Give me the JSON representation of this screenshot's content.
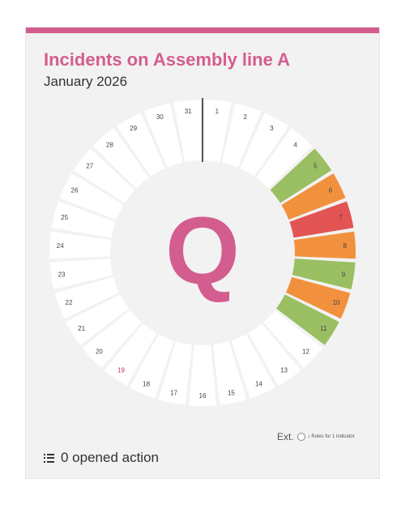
{
  "card": {
    "title": "Incidents on Assembly line A",
    "subtitle": "January 2026",
    "accent_color": "#d45d8f"
  },
  "calendar_ring": {
    "center_letter": "Q",
    "center_letter_color": "#d45d8f",
    "days_in_month": 31,
    "highlighted_day": 19,
    "highlight_color": "#c0336a",
    "days": [
      {
        "day": "1",
        "status": "empty"
      },
      {
        "day": "2",
        "status": "empty"
      },
      {
        "day": "3",
        "status": "empty"
      },
      {
        "day": "4",
        "status": "empty"
      },
      {
        "day": "5",
        "status": "green"
      },
      {
        "day": "6",
        "status": "orange"
      },
      {
        "day": "7",
        "status": "red"
      },
      {
        "day": "8",
        "status": "orange"
      },
      {
        "day": "9",
        "status": "green"
      },
      {
        "day": "10",
        "status": "orange"
      },
      {
        "day": "11",
        "status": "green"
      },
      {
        "day": "12",
        "status": "empty"
      },
      {
        "day": "13",
        "status": "empty"
      },
      {
        "day": "14",
        "status": "empty"
      },
      {
        "day": "15",
        "status": "empty"
      },
      {
        "day": "16",
        "status": "empty"
      },
      {
        "day": "17",
        "status": "empty"
      },
      {
        "day": "18",
        "status": "empty"
      },
      {
        "day": "19",
        "status": "empty"
      },
      {
        "day": "20",
        "status": "empty"
      },
      {
        "day": "21",
        "status": "empty"
      },
      {
        "day": "22",
        "status": "empty"
      },
      {
        "day": "23",
        "status": "empty"
      },
      {
        "day": "24",
        "status": "empty"
      },
      {
        "day": "25",
        "status": "empty"
      },
      {
        "day": "26",
        "status": "empty"
      },
      {
        "day": "27",
        "status": "empty"
      },
      {
        "day": "28",
        "status": "empty"
      },
      {
        "day": "29",
        "status": "empty"
      },
      {
        "day": "30",
        "status": "empty"
      },
      {
        "day": "31",
        "status": "empty"
      }
    ],
    "status_colors": {
      "green": "#99bf62",
      "orange": "#f2913d",
      "red": "#e35454",
      "empty": "#ffffff"
    }
  },
  "legend": {
    "ext_label": "Ext.",
    "rules_label": "Rules for 1 indicator",
    "icon": "circle-indicator-icon"
  },
  "actions": {
    "icon": "list-icon",
    "label": "0 opened action"
  }
}
